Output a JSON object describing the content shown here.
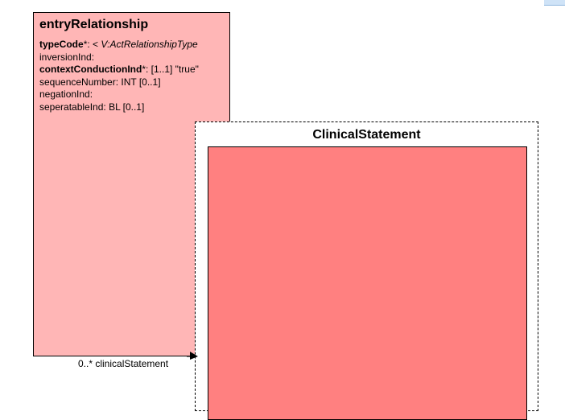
{
  "entry_relationship": {
    "title": "entryRelationship",
    "attributes": [
      {
        "name": "typeCode",
        "suffix": "*: < ",
        "type": "V:ActRelationshipType"
      },
      {
        "text": "inversionInd:"
      },
      {
        "name": "contextConductionInd",
        "suffix": "*: [1..1] \"true\""
      },
      {
        "text": "sequenceNumber: INT [0..1]"
      },
      {
        "text": "negationInd:"
      },
      {
        "text": "seperatableInd: BL [0..1]"
      }
    ]
  },
  "clinical_statement": {
    "title": "ClinicalStatement"
  },
  "association": {
    "label": "0..* clinicalStatement"
  },
  "colors": {
    "entry_fill": "#ffb6b6",
    "choice_inner_fill": "#ff8080",
    "border": "#000000"
  }
}
